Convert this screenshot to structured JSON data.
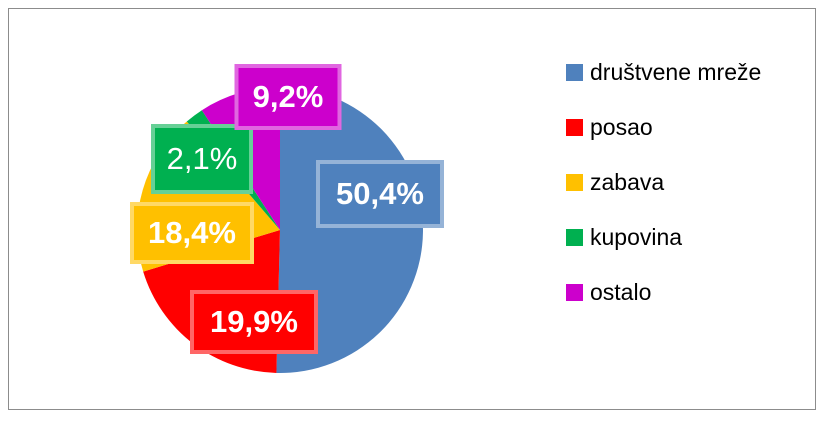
{
  "chart_data": {
    "type": "pie",
    "categories": [
      "društvene mreže",
      "posao",
      "zabava",
      "kupovina",
      "ostalo"
    ],
    "values": [
      50.4,
      19.9,
      18.4,
      2.1,
      9.2
    ],
    "value_labels": [
      "50,4%",
      "19,9%",
      "18,4%",
      "2,1%",
      "9,2%"
    ],
    "colors": [
      "#4f81bd",
      "#ff0000",
      "#ffc000",
      "#00b050",
      "#cc00cc"
    ],
    "legend": "right"
  }
}
